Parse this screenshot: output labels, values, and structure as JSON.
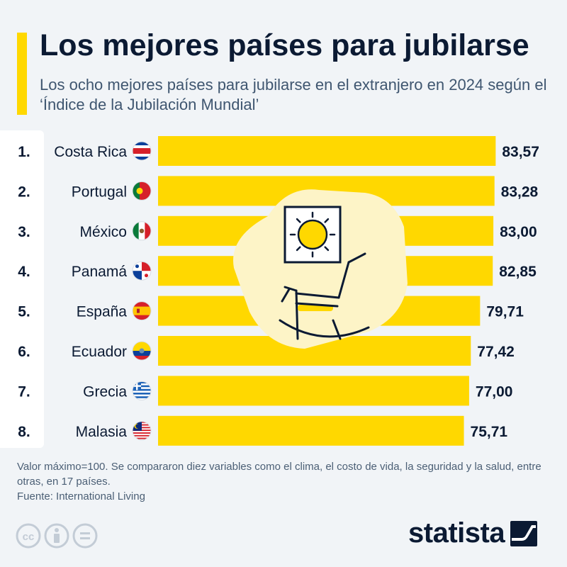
{
  "title": "Los mejores países para jubilarse",
  "subtitle": "Los ocho mejores países para jubilarse en el extranjero en 2024 según el ‘Índice de la Jubilación Mundial’",
  "chart_data": {
    "type": "bar",
    "orientation": "horizontal",
    "ranks": [
      "1.",
      "2.",
      "3.",
      "4.",
      "5.",
      "6.",
      "7.",
      "8."
    ],
    "categories": [
      "Costa Rica",
      "Portugal",
      "México",
      "Panamá",
      "España",
      "Ecuador",
      "Grecia",
      "Malasia"
    ],
    "values": [
      83.57,
      83.28,
      83.0,
      82.85,
      79.71,
      77.42,
      77.0,
      75.71
    ],
    "value_labels": [
      "83,57",
      "83,28",
      "83,00",
      "82,85",
      "79,71",
      "77,42",
      "77,00",
      "75,71"
    ],
    "flags": [
      "flag-costa-rica",
      "flag-portugal",
      "flag-mexico",
      "flag-panama",
      "flag-spain",
      "flag-ecuador",
      "flag-greece",
      "flag-malaysia"
    ],
    "bar_color": "#ffd800",
    "grid": false,
    "legend": "none"
  },
  "footnote": "Valor máximo=100. Se compararon diez variables como el clima, el costo de vida, la seguridad y la salud, entre otras, en 17 países.",
  "source": "Fuente: International Living",
  "logo_text": "statista",
  "colors": {
    "background": "#f1f4f7",
    "accent": "#ffd800",
    "title": "#0b1a33",
    "subtitle": "#3f5670",
    "illustration_bg": "#fdf4c7"
  },
  "illustration": "rocking-chair-with-sun",
  "icons": [
    "cc-icon",
    "attribution-icon",
    "no-derivatives-icon",
    "statista-logo-icon"
  ]
}
